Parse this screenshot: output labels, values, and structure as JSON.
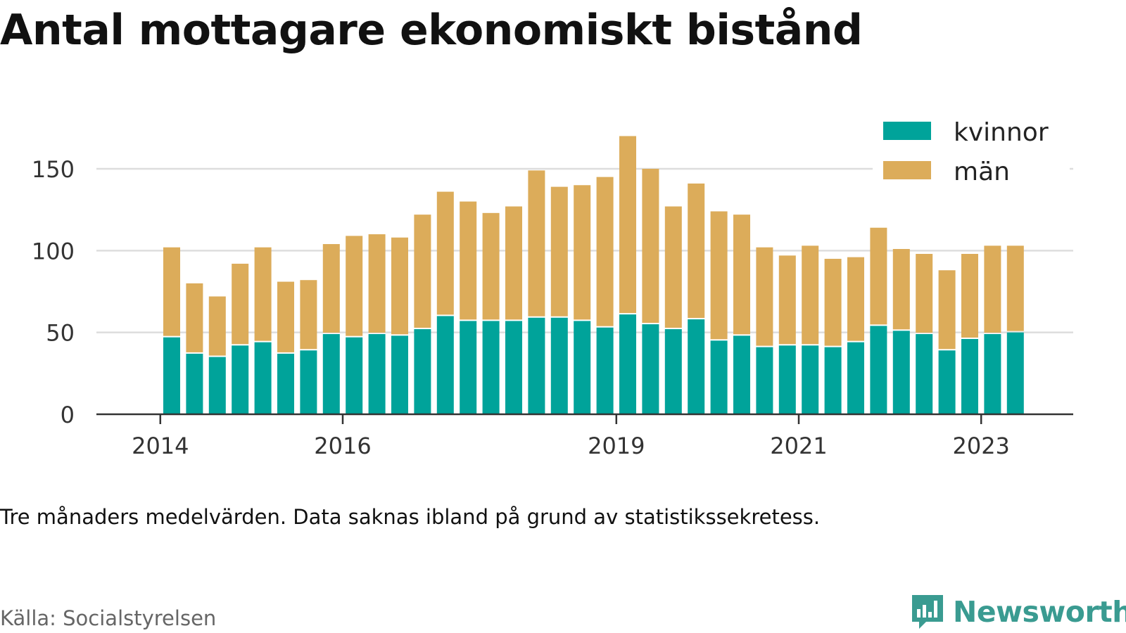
{
  "title": "Antal mottagare ekonomiskt bistånd",
  "note": "Tre månaders medelvärden. Data saknas ibland på grund av statistikssekretess.",
  "source": "Källa: Socialstyrelsen",
  "brand": {
    "name": "Newsworthy",
    "icon": "newsworthy-logo-icon",
    "color": "#3a9b91"
  },
  "colors": {
    "kvinnor": "#00a39a",
    "man": "#dcac5a",
    "grid": "#dddddd",
    "axis": "#333333"
  },
  "chart_data": {
    "type": "bar",
    "stacked": true,
    "title": "Antal mottagare ekonomiskt bistånd",
    "xlabel": "",
    "ylabel": "",
    "x_ticks": [
      "2014",
      "2016",
      "2019",
      "2021",
      "2023"
    ],
    "y_ticks": [
      0,
      50,
      100,
      150
    ],
    "ylim": [
      0,
      175
    ],
    "grid": true,
    "legend_position": "top-right",
    "categories": [
      "2014 Q2",
      "2014 Q3",
      "2014 Q4",
      "2015 Q1",
      "2015 Q2",
      "2015 Q3",
      "2015 Q4",
      "2016 Q1",
      "2016 Q2",
      "2016 Q3",
      "2016 Q4",
      "2017 Q1",
      "2017 Q2",
      "2017 Q3",
      "2017 Q4",
      "2018 Q1",
      "2018 Q2",
      "2018 Q3",
      "2018 Q4",
      "2019 Q1",
      "2019 Q2",
      "2019 Q3",
      "2019 Q4",
      "2020 Q1",
      "2020 Q2",
      "2020 Q3",
      "2020 Q4",
      "2021 Q1",
      "2021 Q2",
      "2021 Q3",
      "2021 Q4",
      "2022 Q1",
      "2022 Q2",
      "2022 Q3",
      "2022 Q4",
      "2023 Q1",
      "2023 Q2",
      "2023 Q3"
    ],
    "series": [
      {
        "name": "kvinnor",
        "color": "#00a39a",
        "values": [
          47,
          37,
          35,
          42,
          44,
          37,
          39,
          49,
          47,
          49,
          48,
          52,
          60,
          57,
          57,
          57,
          59,
          59,
          57,
          53,
          61,
          55,
          52,
          58,
          45,
          48,
          41,
          42,
          42,
          41,
          44,
          54,
          51,
          49,
          39,
          46,
          49,
          50
        ]
      },
      {
        "name": "män",
        "color": "#dcac5a",
        "values": [
          55,
          43,
          37,
          50,
          58,
          44,
          43,
          55,
          62,
          61,
          60,
          70,
          76,
          73,
          66,
          70,
          90,
          80,
          83,
          92,
          109,
          95,
          75,
          83,
          79,
          74,
          61,
          55,
          61,
          54,
          52,
          60,
          50,
          49,
          49,
          52,
          54,
          53
        ]
      }
    ]
  }
}
